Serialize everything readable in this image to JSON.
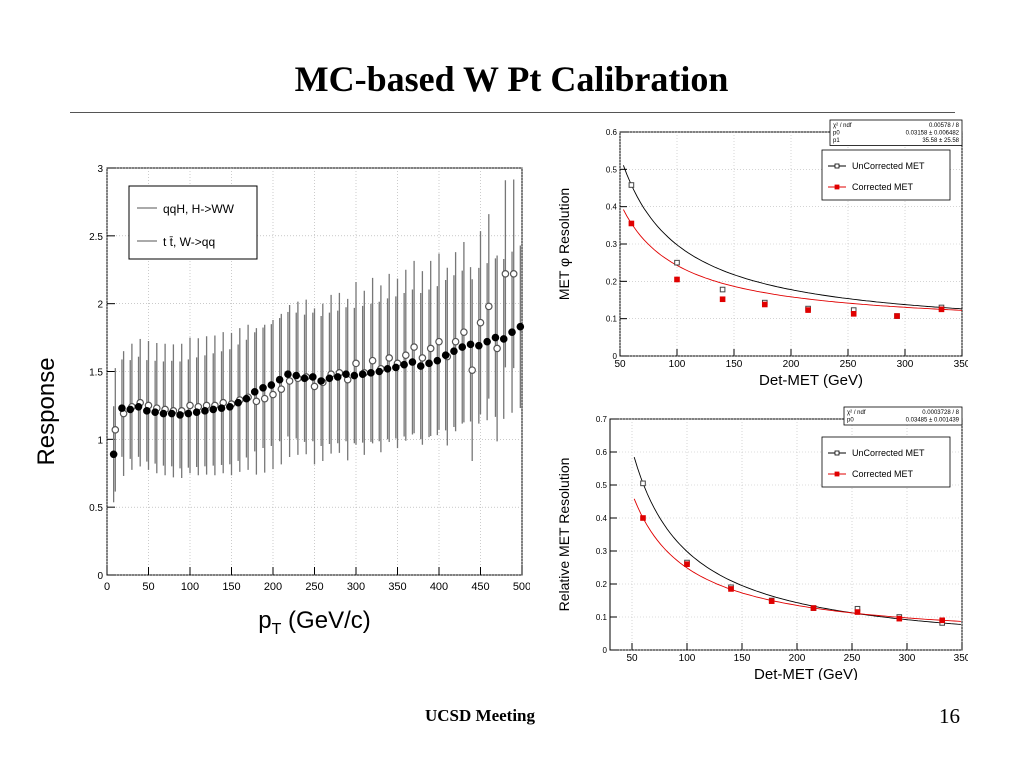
{
  "slide": {
    "title": "MC-based W Pt Calibration",
    "footer": "UCSD Meeting",
    "page_number": "16"
  },
  "chart_data": [
    {
      "type": "scatter",
      "xlabel": "p",
      "xlabel_sub": "T",
      "xlabel_unit": " (GeV/c)",
      "ylabel": "Response",
      "xlim": [
        0,
        500
      ],
      "ylim": [
        0,
        3
      ],
      "xticks": [
        0,
        50,
        100,
        150,
        200,
        250,
        300,
        350,
        400,
        450,
        500
      ],
      "yticks": [
        0,
        0.5,
        1,
        1.5,
        2,
        2.5,
        3
      ],
      "grid": true,
      "legend_position": "top-left",
      "legend": [
        "qqH, H->WW",
        "t t̄, W->qq"
      ],
      "series": [
        {
          "name": "qqH, H->WW",
          "marker": "open-circle",
          "x": [
            10,
            20,
            30,
            40,
            50,
            60,
            70,
            80,
            90,
            100,
            110,
            120,
            130,
            140,
            150,
            160,
            170,
            180,
            190,
            200,
            210,
            220,
            230,
            240,
            250,
            260,
            270,
            280,
            290,
            300,
            310,
            320,
            330,
            340,
            350,
            360,
            370,
            380,
            390,
            400,
            410,
            420,
            430,
            440,
            450,
            460,
            470,
            480,
            490
          ],
          "y": [
            1.07,
            1.19,
            1.24,
            1.27,
            1.25,
            1.23,
            1.22,
            1.21,
            1.21,
            1.25,
            1.24,
            1.25,
            1.25,
            1.27,
            1.26,
            1.29,
            1.31,
            1.28,
            1.3,
            1.33,
            1.37,
            1.43,
            1.45,
            1.46,
            1.39,
            1.42,
            1.48,
            1.49,
            1.44,
            1.56,
            1.49,
            1.58,
            1.52,
            1.6,
            1.56,
            1.62,
            1.68,
            1.6,
            1.67,
            1.72,
            1.61,
            1.72,
            1.79,
            1.51,
            1.86,
            1.98,
            1.67,
            2.22,
            2.22
          ]
        },
        {
          "name": "t t̄, W->qq",
          "marker": "filled-circle",
          "x": [
            8,
            18,
            28,
            38,
            48,
            58,
            68,
            78,
            88,
            98,
            108,
            118,
            128,
            138,
            148,
            158,
            168,
            178,
            188,
            198,
            208,
            218,
            228,
            238,
            248,
            258,
            268,
            278,
            288,
            298,
            308,
            318,
            328,
            338,
            348,
            358,
            368,
            378,
            388,
            398,
            408,
            418,
            428,
            438,
            448,
            458,
            468,
            478,
            488,
            498
          ],
          "y": [
            0.89,
            1.23,
            1.22,
            1.24,
            1.21,
            1.2,
            1.19,
            1.19,
            1.18,
            1.19,
            1.2,
            1.21,
            1.22,
            1.23,
            1.24,
            1.27,
            1.3,
            1.35,
            1.38,
            1.4,
            1.44,
            1.48,
            1.47,
            1.45,
            1.46,
            1.43,
            1.45,
            1.46,
            1.48,
            1.47,
            1.48,
            1.49,
            1.5,
            1.52,
            1.53,
            1.55,
            1.57,
            1.54,
            1.56,
            1.58,
            1.62,
            1.65,
            1.68,
            1.7,
            1.69,
            1.72,
            1.75,
            1.74,
            1.79,
            1.83
          ]
        }
      ]
    },
    {
      "type": "scatter",
      "xlabel": "Det-MET (GeV)",
      "ylabel": "MET φ Resolution",
      "xlim": [
        50,
        350
      ],
      "ylim": [
        0,
        0.6
      ],
      "xticks": [
        50,
        100,
        150,
        200,
        250,
        300,
        350
      ],
      "yticks": [
        0,
        0.1,
        0.2,
        0.3,
        0.4,
        0.5,
        0.6
      ],
      "grid": true,
      "legend_position": "top-right",
      "legend": [
        "UnCorrected MET",
        "Corrected MET"
      ],
      "stats": [
        [
          "χ² / ndf",
          "0.00578 / 8"
        ],
        [
          "p0",
          "0.03158 ± 0.006482"
        ],
        [
          "p1",
          "35.58 ± 25.58"
        ]
      ],
      "series": [
        {
          "name": "UnCorrected MET",
          "color": "#000000",
          "x": [
            60,
            100,
            140,
            177,
            215,
            255,
            293,
            332
          ],
          "y": [
            0.458,
            0.25,
            0.178,
            0.143,
            0.127,
            0.123,
            0.107,
            0.13
          ]
        },
        {
          "name": "Corrected MET",
          "color": "#e00000",
          "x": [
            60,
            100,
            140,
            177,
            215,
            255,
            293,
            332
          ],
          "y": [
            0.355,
            0.205,
            0.152,
            0.138,
            0.123,
            0.113,
            0.107,
            0.125
          ]
        }
      ]
    },
    {
      "type": "scatter",
      "xlabel": "Det-MET (GeV)",
      "ylabel": "Relative MET Resolution",
      "xlim": [
        30,
        350
      ],
      "ylim": [
        0,
        0.7
      ],
      "xticks": [
        50,
        100,
        150,
        200,
        250,
        300,
        350
      ],
      "yticks": [
        0,
        0.1,
        0.2,
        0.3,
        0.4,
        0.5,
        0.6,
        0.7
      ],
      "grid": true,
      "legend_position": "top-right",
      "legend": [
        "UnCorrected MET",
        "Corrected MET"
      ],
      "stats": [
        [
          "χ² / ndf",
          "0.0003728 / 8"
        ],
        [
          "p0",
          "0.03485 ± 0.001439"
        ]
      ],
      "series": [
        {
          "name": "UnCorrected MET",
          "color": "#000000",
          "x": [
            60,
            100,
            140,
            177,
            215,
            255,
            293,
            332
          ],
          "y": [
            0.505,
            0.265,
            0.19,
            0.15,
            0.127,
            0.125,
            0.1,
            0.082
          ]
        },
        {
          "name": "Corrected MET",
          "color": "#e00000",
          "x": [
            60,
            100,
            140,
            177,
            215,
            255,
            293,
            332
          ],
          "y": [
            0.4,
            0.26,
            0.185,
            0.148,
            0.127,
            0.115,
            0.095,
            0.09
          ]
        }
      ]
    }
  ]
}
